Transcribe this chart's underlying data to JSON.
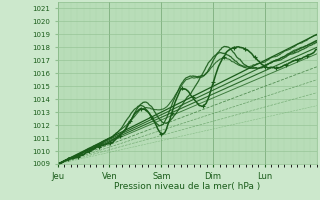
{
  "xlabel": "Pression niveau de la mer( hPa )",
  "bg_color": "#cce8cc",
  "plot_bg_color": "#b8ddb8",
  "grid_color_major": "#90c090",
  "grid_color_minor": "#a8d4a8",
  "dark_green": "#1a5c1a",
  "mid_green": "#2d7a2d",
  "light_green": "#4a9a4a",
  "ylim": [
    1009,
    1021.5
  ],
  "ytick_min": 1009,
  "ytick_max": 1021,
  "day_labels": [
    "Jeu",
    "Ven",
    "Sam",
    "Dim",
    "Lun"
  ],
  "day_positions": [
    0.0,
    0.2,
    0.4,
    0.6,
    0.8
  ],
  "num_points": 500
}
